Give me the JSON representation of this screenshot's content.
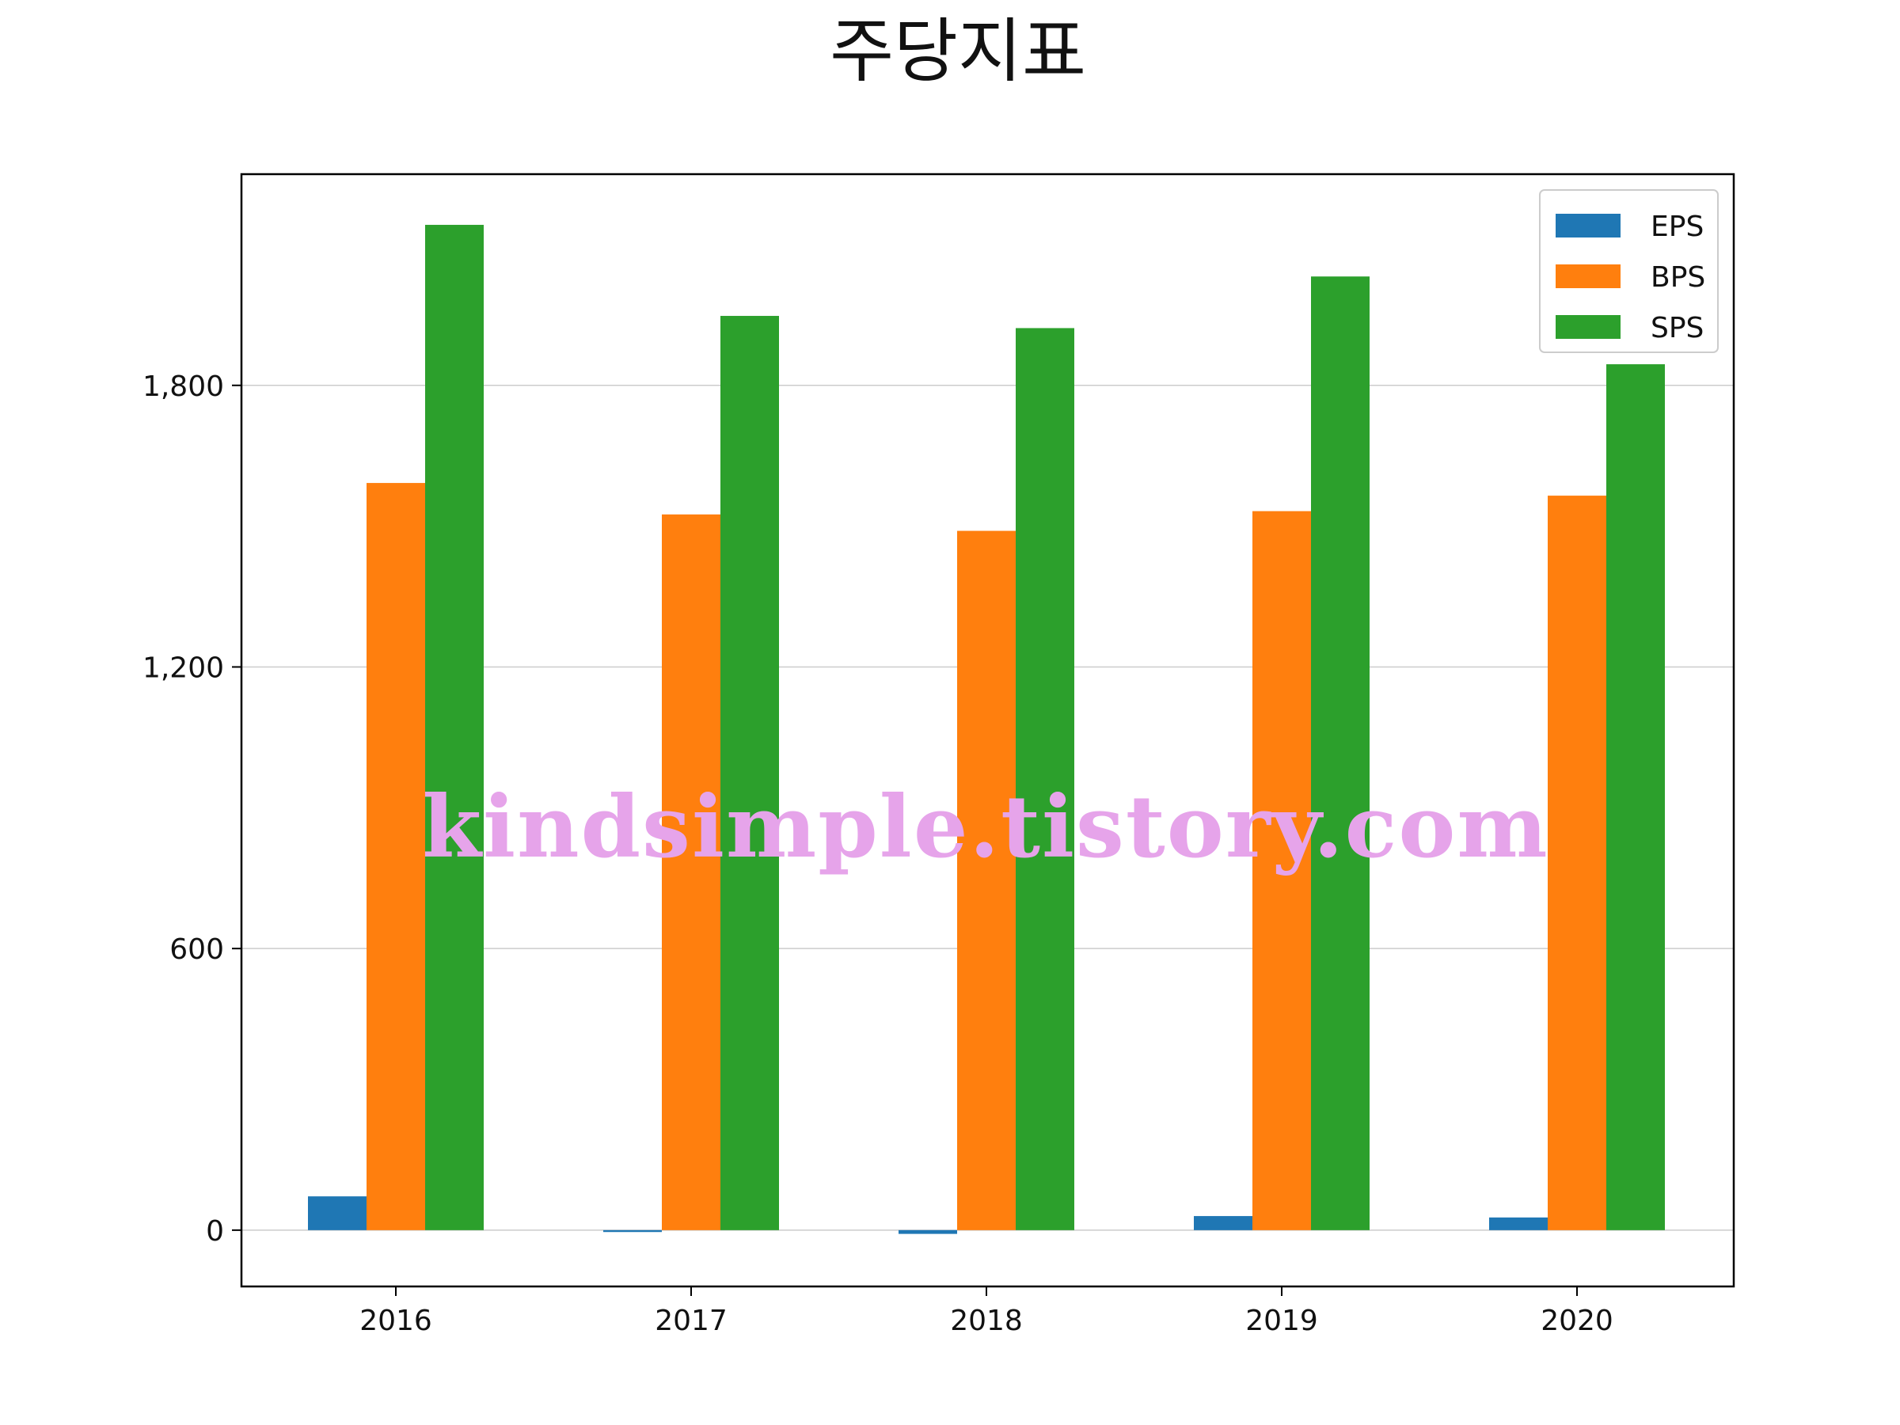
{
  "chart_data": {
    "type": "bar",
    "title": "주당지표",
    "xlabel": "",
    "ylabel": "",
    "categories": [
      "2016",
      "2017",
      "2018",
      "2019",
      "2020"
    ],
    "series": [
      {
        "name": "EPS",
        "color": "#1f77b4",
        "values": [
          72,
          -4,
          -8,
          30,
          27
        ]
      },
      {
        "name": "BPS",
        "color": "#ff7f0e",
        "values": [
          1592,
          1525,
          1490,
          1532,
          1565
        ]
      },
      {
        "name": "SPS",
        "color": "#2ca02c",
        "values": [
          2142,
          1948,
          1922,
          2032,
          1845
        ]
      }
    ],
    "ylim": [
      -120,
      2250
    ],
    "yticks": [
      0,
      600,
      1200,
      1800
    ],
    "ytick_labels": [
      "0",
      "600",
      "1,200",
      "1,800"
    ],
    "grid": "horizontal",
    "legend_position": "top-right"
  },
  "watermark": "kindsimple.tistory.com"
}
